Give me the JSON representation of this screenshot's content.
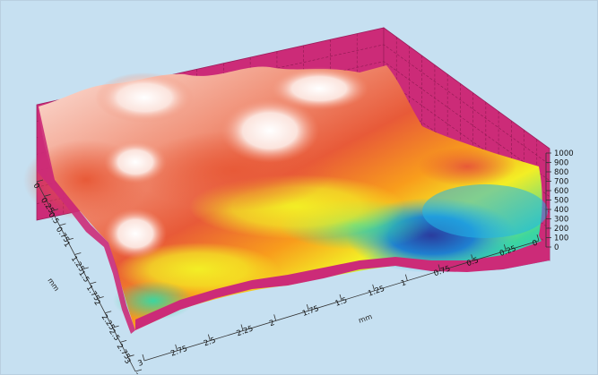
{
  "chart_data": {
    "type": "surface3d",
    "title": "",
    "colors": {
      "background": "#c6e0f1",
      "walls": "#cc2b78",
      "wall_grid": "#8f1a52",
      "colormap": [
        "#2a3c9e",
        "#22b7e8",
        "#3cd6a0",
        "#f3ee25",
        "#f89c1c",
        "#e85a38",
        "#f1937a",
        "#fbe3dc"
      ]
    },
    "x_axis": {
      "label": "mm",
      "range": [
        0,
        3.25
      ],
      "ticks": [
        "0",
        "0.25",
        "0.5",
        "0.75",
        "1",
        "1.25",
        "1.5",
        "1.75",
        "2",
        "2.25",
        "2.5",
        "2.75",
        "3",
        "3.25"
      ]
    },
    "y_axis": {
      "label": "mm",
      "range": [
        0,
        3.25
      ],
      "ticks": [
        "0",
        "0.25",
        "0.5",
        "0.75",
        "1",
        "1.25",
        "1.5",
        "1.75",
        "2",
        "2.25",
        "2.5",
        "2.75",
        "3"
      ]
    },
    "z_axis": {
      "label": "",
      "range": [
        0,
        1000
      ],
      "ticks": [
        "0",
        "100",
        "200",
        "300",
        "400",
        "500",
        "600",
        "700",
        "800",
        "900",
        "1000"
      ]
    },
    "grid": true,
    "surface_note": "Rough height surface; high (whitish) plateaus toward back-left, deep blue valley near front-right."
  }
}
